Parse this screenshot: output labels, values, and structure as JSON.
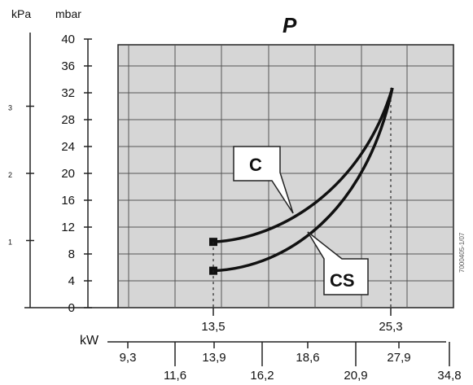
{
  "chart_data": {
    "type": "line",
    "title": "P",
    "y_units": {
      "left": "kPa",
      "right": "mbar"
    },
    "y_ticks": [
      "0",
      "4",
      "8",
      "12",
      "16",
      "20",
      "24",
      "28",
      "32",
      "36",
      "40"
    ],
    "ylim": [
      0,
      40
    ],
    "kpa_ticks": [
      "1",
      "2",
      "3"
    ],
    "x_marks": [
      "13,5",
      "25,3"
    ],
    "kw_label": "kW",
    "kw_ticks_upper": [
      "9,3",
      "13,9",
      "18,6",
      "27,9"
    ],
    "kw_ticks_lower": [
      "11,6",
      "16,2",
      "20,9",
      "34,8"
    ],
    "grid": true,
    "series": [
      {
        "name": "C",
        "x": [
          13.5,
          16.0,
          18.5,
          21.0,
          23.5,
          25.3
        ],
        "y": [
          9.8,
          11.0,
          13.5,
          18.0,
          25.0,
          33.0
        ]
      },
      {
        "name": "CS",
        "x": [
          13.5,
          16.0,
          18.5,
          21.0,
          23.5,
          25.3
        ],
        "y": [
          5.5,
          7.5,
          11.0,
          16.5,
          24.5,
          33.0
        ]
      }
    ],
    "code_text": "7000405-1/07"
  }
}
